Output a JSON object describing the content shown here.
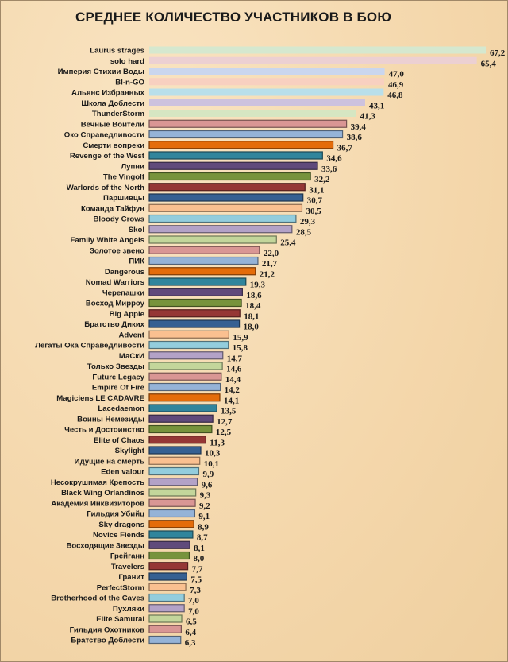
{
  "chart_data": {
    "type": "bar",
    "orientation": "horizontal",
    "title": "СРЕДНЕЕ КОЛИЧЕСТВО УЧАСТНИКОВ В БОЮ",
    "xlabel": "",
    "ylabel": "",
    "xlim": [
      0,
      70
    ],
    "grid": false,
    "categories": [
      "Laurus strages",
      "solo hard",
      "Империя Стихии Воды",
      "BI-n-GO",
      "Альянс Избранных",
      "Школа Доблести",
      "ThunderStorm",
      "Вечные Воители",
      "Око Справедливости",
      "Смерти вопреки",
      "Revenge of the West",
      "Лупни",
      "The Vingolf",
      "Warlords of the North",
      "Паршивцы",
      "Команда Тайфун",
      "Bloody Crows",
      "Skol",
      "Family White Angels",
      "Золотое звено",
      "ПИК",
      "Dangerous",
      "Nomad Warriors",
      "Черепашки",
      "Восход Мирроу",
      "Big Apple",
      "Братство Диких",
      "Advent",
      "Легаты Ока Справедливости",
      "МаСкИ",
      "Только Звезды",
      "Future Legacy",
      "Empire Of Fire",
      "Magiciens LE CADAVRE",
      "Lacedaemon",
      "Воины Немезиды",
      "Честь и Достоинство",
      "Elite of Chaos",
      "Skylight",
      "Идущие на смерть",
      "Eden valour",
      "Несокрушимая Крепость",
      "Black Wing Orlandinos",
      "Академия Инквизиторов",
      "Гильдия Убийц",
      "Sky dragons",
      "Novice Fiends",
      "Восходящие Звезды",
      "Грейганн",
      "Travelers",
      "Гранит",
      "PerfectStorm",
      "Brotherhood of the Caves",
      "Пухляки",
      "Elite Samurai",
      "Гильдия Охотников",
      "Братство Доблести"
    ],
    "values": [
      67.2,
      65.4,
      47.0,
      46.9,
      46.8,
      43.1,
      41.3,
      39.4,
      38.6,
      36.7,
      34.6,
      33.6,
      32.2,
      31.1,
      30.7,
      30.5,
      29.3,
      28.5,
      25.4,
      22.0,
      21.7,
      21.2,
      19.3,
      18.6,
      18.4,
      18.1,
      18.0,
      15.9,
      15.8,
      14.7,
      14.6,
      14.4,
      14.2,
      14.1,
      13.5,
      12.7,
      12.5,
      11.3,
      10.3,
      10.1,
      9.9,
      9.6,
      9.3,
      9.2,
      9.1,
      8.9,
      8.7,
      8.1,
      8.0,
      7.7,
      7.5,
      7.3,
      7.0,
      7.0,
      6.5,
      6.4,
      6.3
    ],
    "value_labels": [
      "67,2",
      "65,4",
      "47,0",
      "46,9",
      "46,8",
      "43,1",
      "41,3",
      "39,4",
      "38,6",
      "36,7",
      "34,6",
      "33,6",
      "32,2",
      "31,1",
      "30,7",
      "30,5",
      "29,3",
      "28,5",
      "25,4",
      "22,0",
      "21,7",
      "21,2",
      "19,3",
      "18,6",
      "18,4",
      "18,1",
      "18,0",
      "15,9",
      "15,8",
      "14,7",
      "14,6",
      "14,4",
      "14,2",
      "14,1",
      "13,5",
      "12,7",
      "12,5",
      "11,3",
      "10,3",
      "10,1",
      "9,9",
      "9,6",
      "9,3",
      "9,2",
      "9,1",
      "8,9",
      "8,7",
      "8,1",
      "8,0",
      "7,7",
      "7,5",
      "7,3",
      "7,0",
      "7,0",
      "6,5",
      "6,4",
      "6,3"
    ],
    "pale_colors": [
      "#d5e8cf",
      "#ecd0d2",
      "#cad6ee",
      "#f8d0c0",
      "#b9dfea",
      "#cdc2de",
      "#d6e6c2"
    ],
    "cycle_colors": [
      "#d99694",
      "#95b3d7",
      "#e46c0a",
      "#31859c",
      "#604a7b",
      "#77933c",
      "#953735",
      "#366092",
      "#fac090",
      "#93cddd",
      "#b3a2c7",
      "#c3d69b"
    ]
  }
}
